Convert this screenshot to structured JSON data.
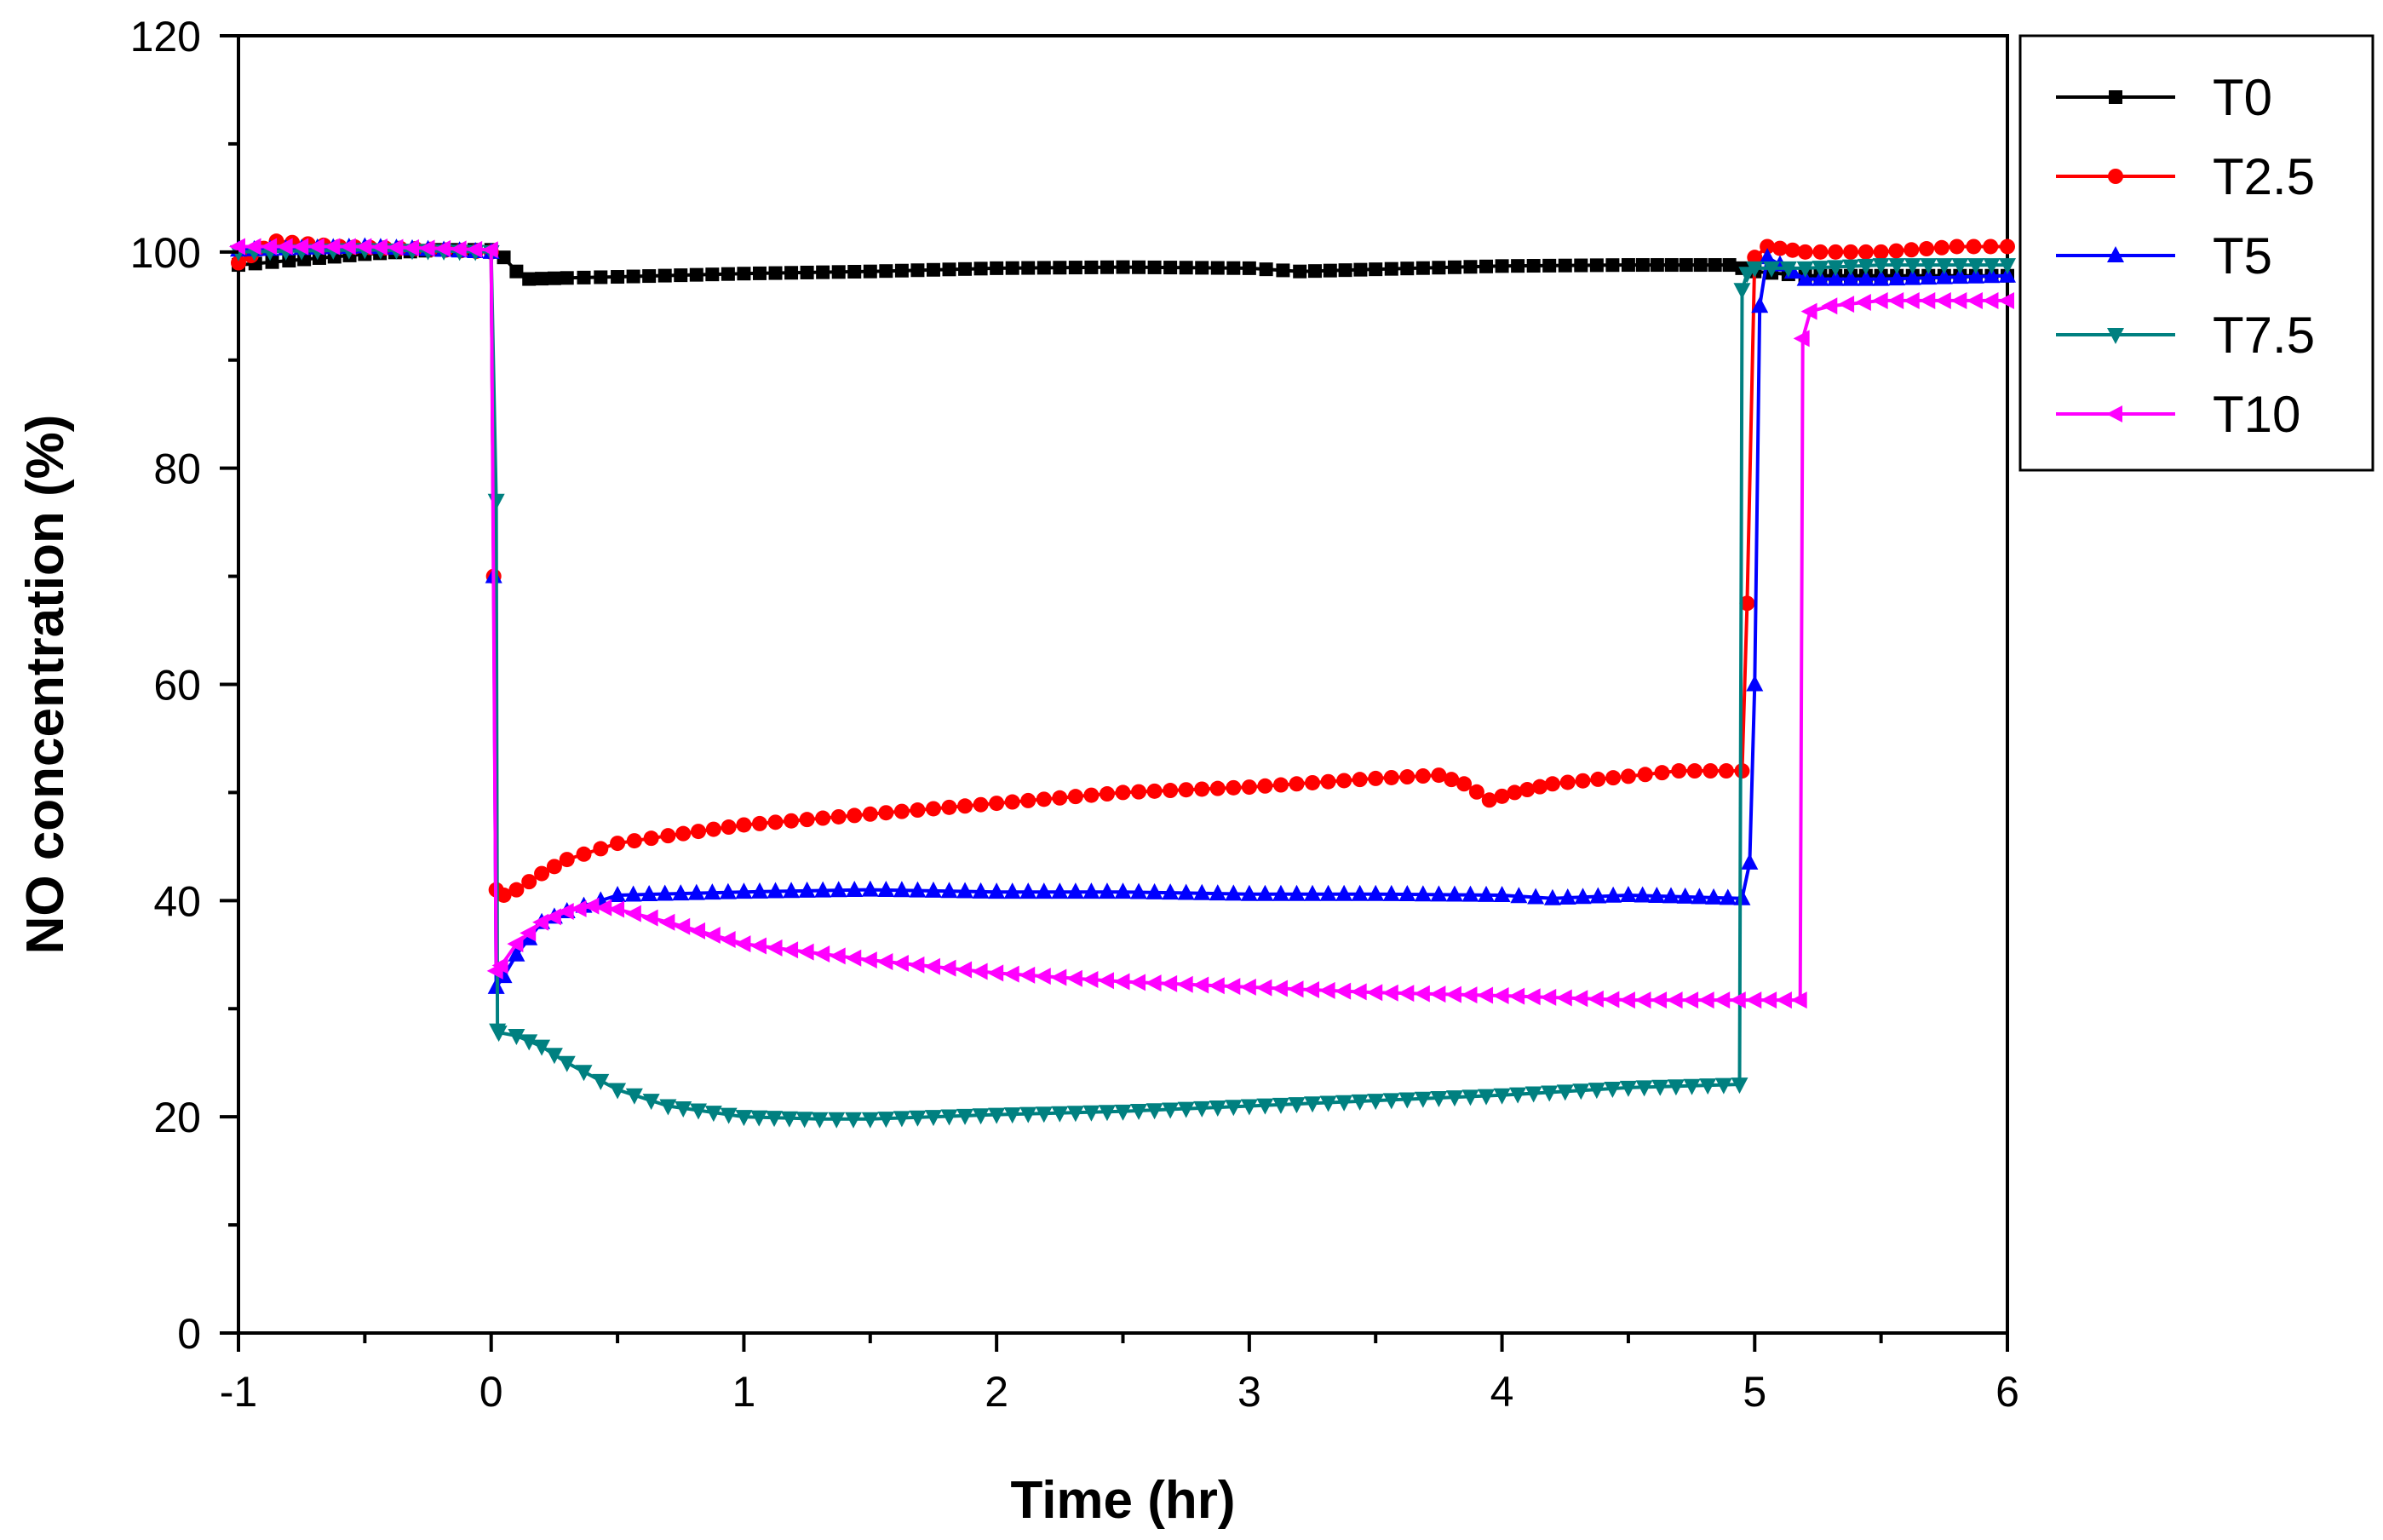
{
  "chart_data": {
    "type": "line",
    "title": "",
    "xlabel": "Time (hr)",
    "ylabel": "NO concentration (%)",
    "xlim": [
      -1,
      6
    ],
    "ylim": [
      0,
      120
    ],
    "xticks": [
      -1,
      0,
      1,
      2,
      3,
      4,
      5,
      6
    ],
    "yticks": [
      0,
      20,
      40,
      60,
      80,
      100,
      120
    ],
    "xtick_labels": [
      "-1",
      "0",
      "1",
      "2",
      "3",
      "4",
      "5",
      "6"
    ],
    "ytick_labels": [
      "0",
      "20",
      "40",
      "60",
      "80",
      "100",
      "120"
    ],
    "legend_position": "top-right",
    "grid": false,
    "series": [
      {
        "name": "T0",
        "color": "#000000",
        "marker": "square",
        "x": [
          -1,
          -0.8,
          -0.5,
          -0.2,
          0,
          0.05,
          0.1,
          0.15,
          0.3,
          0.5,
          1,
          1.5,
          2,
          2.5,
          3,
          3.2,
          3.5,
          4,
          4.5,
          4.9,
          5,
          5.2,
          5.5,
          6
        ],
        "y": [
          98.8,
          99.2,
          99.8,
          100.2,
          100.2,
          99.5,
          98.2,
          97.5,
          97.6,
          97.7,
          98.0,
          98.2,
          98.5,
          98.6,
          98.5,
          98.2,
          98.4,
          98.7,
          98.8,
          98.8,
          98.2,
          97.8,
          97.8,
          97.8
        ]
      },
      {
        "name": "T2.5",
        "color": "#ff0000",
        "marker": "circle",
        "x": [
          -1,
          -0.85,
          -0.6,
          -0.3,
          0,
          0.01,
          0.02,
          0.05,
          0.1,
          0.2,
          0.3,
          0.5,
          0.7,
          1,
          1.5,
          2,
          2.5,
          3,
          3.5,
          3.75,
          3.85,
          3.95,
          4.05,
          4.2,
          4.5,
          4.7,
          4.95,
          4.97,
          5.0,
          5.05,
          5.2,
          5.5,
          5.8,
          6
        ],
        "y": [
          99.0,
          101.0,
          100.5,
          100.3,
          100.0,
          70.0,
          41.0,
          40.5,
          41.0,
          42.5,
          43.8,
          45.3,
          46.0,
          47.0,
          48.0,
          49.0,
          50.0,
          50.5,
          51.3,
          51.6,
          50.8,
          49.3,
          50.0,
          50.8,
          51.5,
          52.0,
          52.0,
          67.5,
          99.5,
          100.5,
          100.0,
          100.0,
          100.5,
          100.5
        ]
      },
      {
        "name": "T5",
        "color": "#0000ff",
        "marker": "triangle-up",
        "x": [
          -1,
          -0.5,
          0,
          0.01,
          0.02,
          0.05,
          0.1,
          0.2,
          0.3,
          0.5,
          1,
          1.5,
          2,
          2.5,
          3,
          3.5,
          4,
          4.2,
          4.5,
          4.95,
          4.98,
          5.0,
          5.02,
          5.05,
          5.2,
          5.5,
          6
        ],
        "y": [
          100.2,
          100.5,
          100.0,
          70.0,
          32.0,
          33.0,
          35.0,
          38.0,
          39.0,
          40.5,
          40.8,
          41.0,
          40.8,
          40.8,
          40.6,
          40.6,
          40.5,
          40.2,
          40.5,
          40.2,
          43.5,
          60.0,
          95.0,
          99.5,
          97.5,
          97.5,
          97.8
        ]
      },
      {
        "name": "T7.5",
        "color": "#008080",
        "marker": "triangle-down",
        "x": [
          -1,
          -0.5,
          0,
          0.02,
          0.025,
          0.03,
          0.1,
          0.2,
          0.3,
          0.5,
          0.7,
          1,
          1.3,
          1.5,
          2,
          2.5,
          3,
          3.5,
          4,
          4.5,
          4.94,
          4.95,
          4.97,
          5.0,
          5.2,
          5.5,
          6
        ],
        "y": [
          100.0,
          100.2,
          100.0,
          77.0,
          28.0,
          27.8,
          27.5,
          26.5,
          25.0,
          22.5,
          21.0,
          20.0,
          19.8,
          19.8,
          20.2,
          20.5,
          21.0,
          21.5,
          22.0,
          22.7,
          23.0,
          96.5,
          98.0,
          98.5,
          98.5,
          98.8,
          98.8
        ]
      },
      {
        "name": "T10",
        "color": "#ff00ff",
        "marker": "triangle-left",
        "x": [
          -1,
          -0.5,
          0,
          0.02,
          0.04,
          0.1,
          0.2,
          0.3,
          0.4,
          0.5,
          0.7,
          1,
          1.5,
          2,
          2.5,
          3,
          3.5,
          4,
          4.5,
          5,
          5.18,
          5.19,
          5.22,
          5.3,
          5.5,
          6
        ],
        "y": [
          100.5,
          100.5,
          100.2,
          33.5,
          34.0,
          36.0,
          38.0,
          39.0,
          39.5,
          39.2,
          38.0,
          36.0,
          34.5,
          33.3,
          32.5,
          32.0,
          31.5,
          31.2,
          30.8,
          30.8,
          30.8,
          92.0,
          94.5,
          95.0,
          95.5,
          95.5
        ]
      }
    ]
  }
}
